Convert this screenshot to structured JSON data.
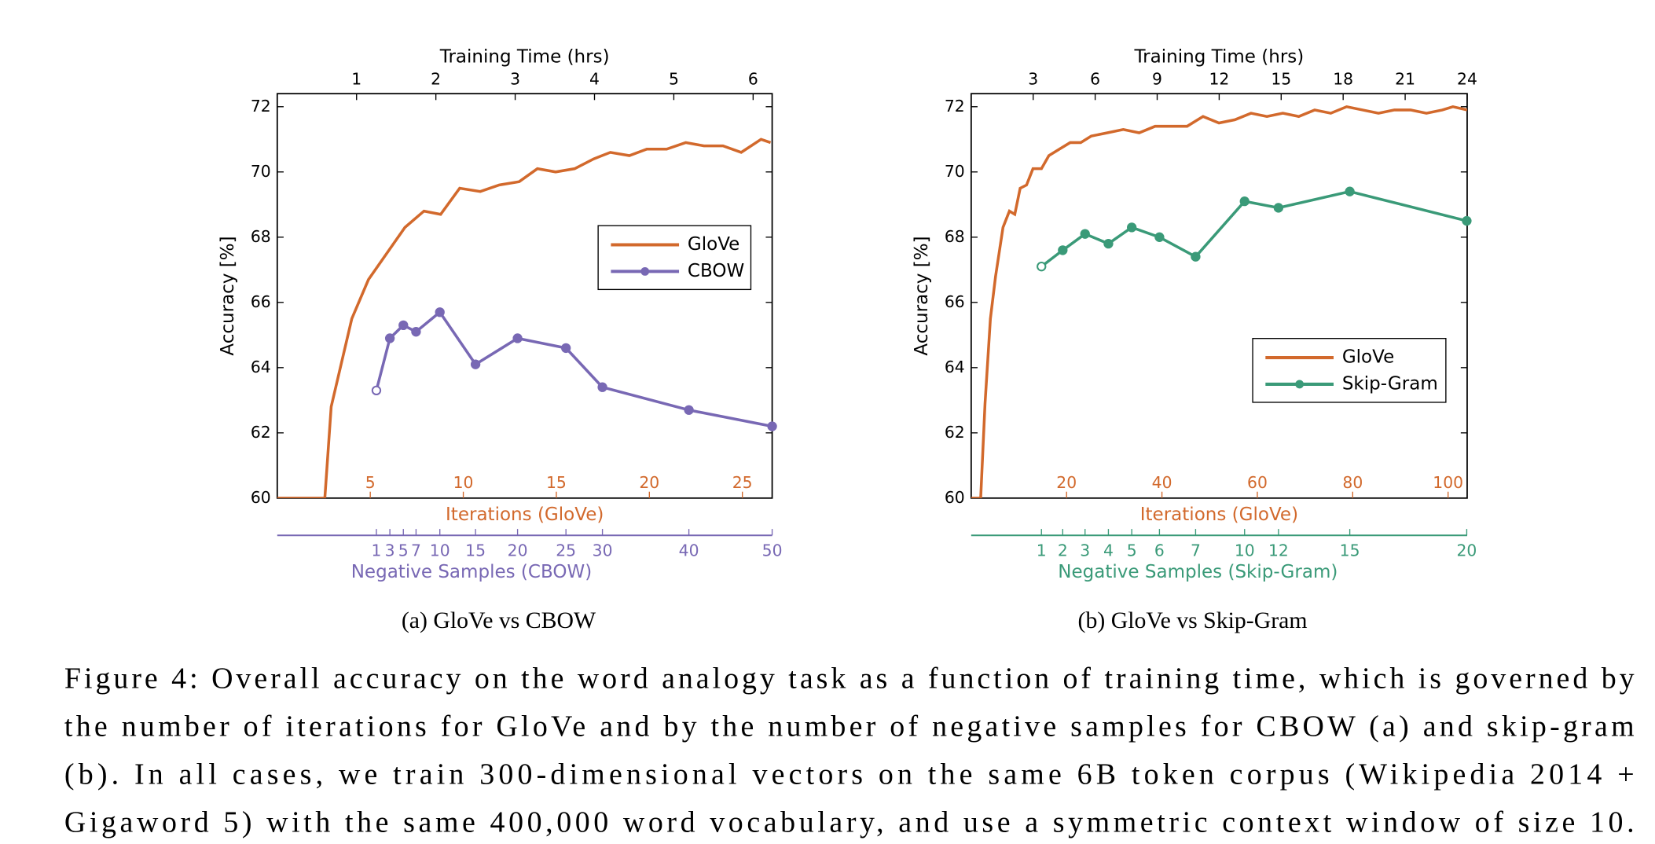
{
  "chart_data": [
    {
      "type": "line",
      "subcaption": "(a)  GloVe vs CBOW",
      "ylabel": "Accuracy [%]",
      "ylim": [
        60,
        72.4
      ],
      "yticks": [
        60,
        62,
        64,
        66,
        68,
        70,
        72
      ],
      "xlabel_top": "Training Time (hrs)",
      "xlim": [
        0,
        6.24
      ],
      "xticks": [
        1,
        2,
        3,
        4,
        5,
        6
      ],
      "iteration_axis": {
        "label": "Iterations (GloVe)",
        "lim": [
          0,
          26.6
        ],
        "ticks": [
          5,
          10,
          15,
          20,
          25
        ],
        "color": "#d2692c"
      },
      "samples_axis": {
        "label": "Negative Samples (CBOW)",
        "color": "#7868b4"
      },
      "legend": "center right",
      "series": [
        {
          "name": "GloVe",
          "color": "#d2692c",
          "x": [
            0,
            0.6,
            0.68,
            0.94,
            1.15,
            1.61,
            1.85,
            2.06,
            2.3,
            2.56,
            2.8,
            3.05,
            3.28,
            3.51,
            3.75,
            3.99,
            4.2,
            4.44,
            4.66,
            4.91,
            5.15,
            5.38,
            5.62,
            5.85,
            6.1,
            6.22
          ],
          "values": [
            60,
            60,
            62.8,
            65.5,
            66.7,
            68.3,
            68.8,
            68.7,
            69.5,
            69.4,
            69.6,
            69.7,
            70.1,
            70,
            70.1,
            70.4,
            70.6,
            70.5,
            70.7,
            70.7,
            70.9,
            70.8,
            70.8,
            70.6,
            71,
            70.9
          ]
        },
        {
          "name": "CBOW",
          "color": "#7868b4",
          "marker": "o",
          "x": [
            1.25,
            1.42,
            1.59,
            1.75,
            2.05,
            2.5,
            3.03,
            3.64,
            4.1,
            5.19,
            6.24
          ],
          "samples": [
            1,
            3,
            5,
            7,
            10,
            15,
            20,
            25,
            30,
            40,
            50
          ],
          "values": [
            63.3,
            64.9,
            65.3,
            65.1,
            65.7,
            64.1,
            64.9,
            64.6,
            63.4,
            62.7,
            62.2
          ]
        }
      ]
    },
    {
      "type": "line",
      "subcaption": "(b)  GloVe vs Skip-Gram",
      "ylabel": "Accuracy [%]",
      "ylim": [
        60,
        72.4
      ],
      "yticks": [
        60,
        62,
        64,
        66,
        68,
        70,
        72
      ],
      "xlabel_top": "Training Time (hrs)",
      "xlim": [
        0,
        24
      ],
      "xticks": [
        3,
        6,
        9,
        12,
        15,
        18,
        21,
        24
      ],
      "iteration_axis": {
        "label": "Iterations (GloVe)",
        "lim": [
          0,
          104
        ],
        "ticks": [
          20,
          40,
          60,
          80,
          100
        ],
        "color": "#d2692c"
      },
      "samples_axis": {
        "label": "Negative Samples (Skip-Gram)",
        "color": "#3a9a78"
      },
      "legend": "lower right",
      "series": [
        {
          "name": "GloVe",
          "color": "#d2692c",
          "x": [
            0,
            0.46,
            0.67,
            0.93,
            1.18,
            1.54,
            1.85,
            2.11,
            2.37,
            2.68,
            2.99,
            3.4,
            3.76,
            4.27,
            4.79,
            5.3,
            5.81,
            6.59,
            7.36,
            8.13,
            8.9,
            9.68,
            10.45,
            11.22,
            11.99,
            12.76,
            13.54,
            14.31,
            15.08,
            15.85,
            16.62,
            17.4,
            18.17,
            18.94,
            19.71,
            20.48,
            21.26,
            22.03,
            22.8,
            23.31,
            24
          ],
          "values": [
            60,
            60,
            62.9,
            65.5,
            66.8,
            68.3,
            68.8,
            68.7,
            69.5,
            69.6,
            70.1,
            70.1,
            70.5,
            70.7,
            70.9,
            70.9,
            71.1,
            71.2,
            71.3,
            71.2,
            71.4,
            71.4,
            71.4,
            71.7,
            71.5,
            71.6,
            71.8,
            71.7,
            71.8,
            71.7,
            71.9,
            71.8,
            72,
            71.9,
            71.8,
            71.9,
            71.9,
            71.8,
            71.9,
            72,
            71.9
          ]
        },
        {
          "name": "Skip-Gram",
          "color": "#3a9a78",
          "marker": "o",
          "x": [
            3.4,
            4.43,
            5.51,
            6.64,
            7.77,
            9.11,
            10.86,
            13.23,
            14.87,
            18.32,
            23.98
          ],
          "samples": [
            1,
            2,
            3,
            4,
            5,
            6,
            7,
            10,
            12,
            15,
            20
          ],
          "values": [
            67.1,
            67.6,
            68.1,
            67.8,
            68.3,
            68,
            67.4,
            69.1,
            68.9,
            69.4,
            68.5
          ]
        }
      ]
    }
  ],
  "caption_lines": [
    "Figure 4: Overall accuracy on the word analogy task as a function of training time, which is governed by",
    "the number of iterations for GloVe and by the number of negative samples for CBOW (a) and skip-gram",
    "(b).  In all cases, we train 300-dimensional vectors on the same 6B token corpus (Wikipedia 2014 +",
    "Gigaword 5) with the same 400,000 word vocabulary, and use a symmetric context window of size 10."
  ]
}
